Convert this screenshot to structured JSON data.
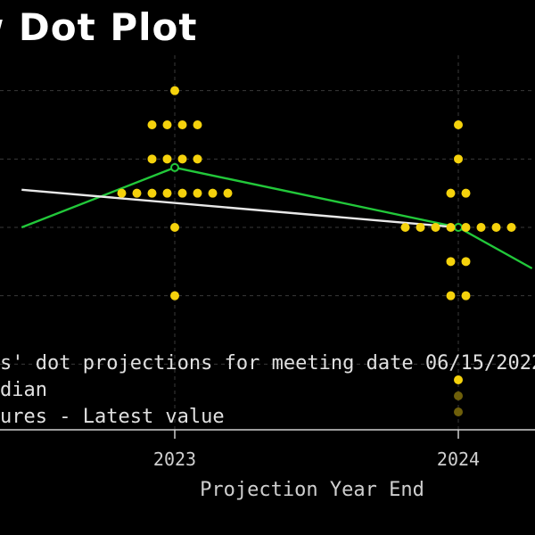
{
  "chart_data": {
    "type": "scatter",
    "title": "ew Dot Plot",
    "xlabel": "Projection Year End",
    "ylabel": "",
    "categories": [
      "2023",
      "2024"
    ],
    "x_visible_range": [
      2022.46,
      2024.26
    ],
    "y_visible_range_note": "rate levels above gridlines",
    "dots": [
      {
        "year": "2023",
        "level": 5.0,
        "count": 1
      },
      {
        "year": "2023",
        "level": 4.5,
        "count": 4
      },
      {
        "year": "2023",
        "level": 4.0,
        "count": 4
      },
      {
        "year": "2023",
        "level": 3.5,
        "count": 8
      },
      {
        "year": "2023",
        "level": 3.0,
        "count": 1
      },
      {
        "year": "2023",
        "level": 2.0,
        "count": 1
      },
      {
        "year": "2024",
        "level": 4.5,
        "count": 1
      },
      {
        "year": "2024",
        "level": 4.0,
        "count": 1
      },
      {
        "year": "2024",
        "level": 3.5,
        "count": 2
      },
      {
        "year": "2024",
        "level": 3.0,
        "count": 8
      },
      {
        "year": "2024",
        "level": 2.5,
        "count": 2
      },
      {
        "year": "2024",
        "level": 2.0,
        "count": 2
      }
    ],
    "series": [
      {
        "name": "edian",
        "color": "#22c83a",
        "x": [
          2022.46,
          2023,
          2024,
          2024.26
        ],
        "y": [
          3.0,
          3.875,
          3.0,
          2.4
        ]
      },
      {
        "name": "ures - Latest value",
        "color": "#e8e8e8",
        "x": [
          2022.46,
          2024
        ],
        "y": [
          3.55,
          3.0
        ]
      }
    ],
    "legend": {
      "placement": "bottom-left",
      "entries": [
        {
          "text": "s' dot projections for meeting date 06/15/2022",
          "color": "#f5d20c",
          "marker": "dot"
        },
        {
          "text": "dian",
          "color": "#6e5f0a",
          "marker": "dot"
        },
        {
          "text": "ures - Latest value",
          "color": "#6e5f0a",
          "marker": "dot"
        }
      ]
    },
    "grid": true,
    "dot_color": "#f5d20c",
    "grid_color": "#3a3a3a",
    "background": "#000000"
  }
}
